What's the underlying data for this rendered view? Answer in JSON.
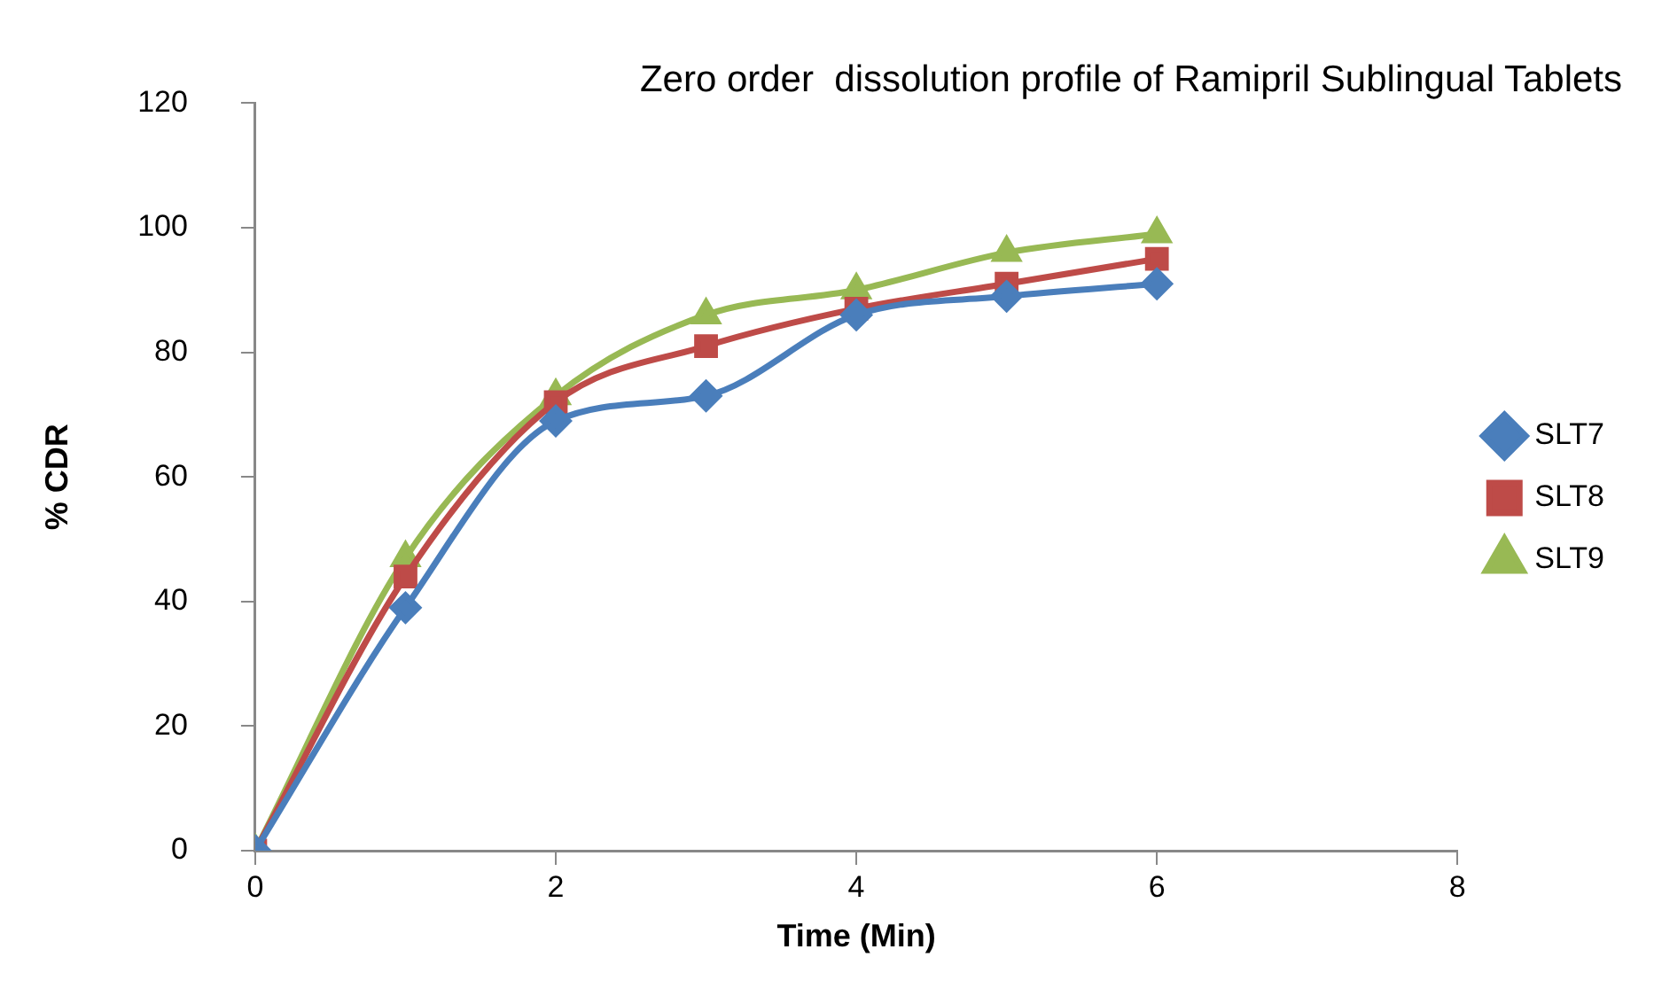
{
  "chart_data": {
    "type": "line",
    "title": "Zero order  dissolution profile of Ramipril Sublingual Tablets",
    "xlabel": "Time (Min)",
    "ylabel": "% CDR",
    "x": [
      0,
      1,
      2,
      3,
      4,
      5,
      6
    ],
    "xlim": [
      0,
      8
    ],
    "xticks": [
      0,
      2,
      4,
      6,
      8
    ],
    "ylim": [
      0,
      120
    ],
    "yticks": [
      0,
      20,
      40,
      60,
      80,
      100,
      120
    ],
    "grid": false,
    "legend": "right",
    "series": [
      {
        "name": "SLT7",
        "color": "#4a7ebb",
        "marker": "diamond",
        "values": [
          0,
          39,
          69,
          73,
          86,
          89,
          91
        ]
      },
      {
        "name": "SLT8",
        "color": "#be4b48",
        "marker": "square",
        "values": [
          0,
          44,
          72,
          81,
          87,
          91,
          95
        ]
      },
      {
        "name": "SLT9",
        "color": "#98b954",
        "marker": "triangle",
        "values": [
          0,
          47,
          73,
          86,
          90,
          96,
          99
        ]
      }
    ]
  }
}
